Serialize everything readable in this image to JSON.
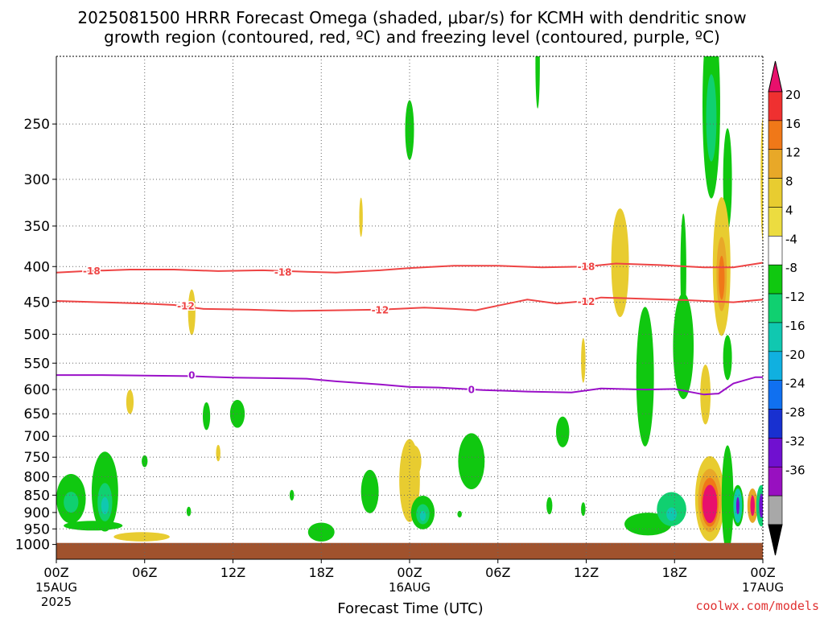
{
  "header": {
    "title_line1": "2025081500 HRRR Forecast Omega (shaded, μbar/s) for KCMH with dendritic snow",
    "title_line2": "growth region (contoured, red, ºC) and freezing level (contoured, purple, ºC)"
  },
  "footer": {
    "xlabel": "Forecast Time (UTC)",
    "credit": "coolwx.com/models"
  },
  "chart_data": {
    "type": "heatmap",
    "x": {
      "range_hours": [
        0,
        48
      ],
      "ticks": [
        {
          "hour": 0,
          "label": "00Z",
          "sub": [
            "15AUG",
            "2025"
          ]
        },
        {
          "hour": 6,
          "label": "06Z",
          "sub": []
        },
        {
          "hour": 12,
          "label": "12Z",
          "sub": []
        },
        {
          "hour": 18,
          "label": "18Z",
          "sub": []
        },
        {
          "hour": 24,
          "label": "00Z",
          "sub": [
            "16AUG"
          ]
        },
        {
          "hour": 30,
          "label": "06Z",
          "sub": []
        },
        {
          "hour": 36,
          "label": "12Z",
          "sub": []
        },
        {
          "hour": 42,
          "label": "18Z",
          "sub": []
        },
        {
          "hour": 48,
          "label": "00Z",
          "sub": [
            "17AUG"
          ]
        }
      ]
    },
    "y": {
      "unit": "hPa",
      "range": [
        200,
        1050
      ],
      "ticks": [
        250,
        300,
        350,
        400,
        450,
        500,
        550,
        600,
        650,
        700,
        750,
        800,
        850,
        900,
        950,
        1000
      ],
      "surface_pressure": 995
    },
    "colorbar": {
      "labels": [
        "20",
        "16",
        "12",
        "8",
        "4",
        "-4",
        "-8",
        "-12",
        "-16",
        "-20",
        "-24",
        "-28",
        "-32",
        "-36"
      ],
      "colors": [
        "#e8106c",
        "#ef3030",
        "#f07818",
        "#e8a828",
        "#e8cc30",
        "#ecdc40",
        "#ffffff",
        "#10c810",
        "#10d070",
        "#10c8b0",
        "#10b0e0",
        "#1070f0",
        "#1830d0",
        "#7010d0",
        "#9810c0",
        "#a8a8a8",
        "#000000"
      ]
    },
    "contours": [
      {
        "name": "-18",
        "color": "#ee4444",
        "points": [
          [
            0,
            408
          ],
          [
            2,
            406
          ],
          [
            5,
            404
          ],
          [
            8,
            404
          ],
          [
            11,
            406
          ],
          [
            14,
            405
          ],
          [
            17,
            407
          ],
          [
            19,
            408
          ],
          [
            22,
            405
          ],
          [
            24,
            402
          ],
          [
            27,
            399
          ],
          [
            30,
            399
          ],
          [
            33,
            401
          ],
          [
            36,
            400
          ],
          [
            38,
            396
          ],
          [
            41,
            398
          ],
          [
            44,
            401
          ],
          [
            46,
            401
          ],
          [
            48,
            395
          ]
        ],
        "labels": [
          [
            2.4,
            406
          ],
          [
            15.4,
            408
          ],
          [
            36,
            400
          ]
        ]
      },
      {
        "name": "-12",
        "color": "#ee4444",
        "points": [
          [
            0,
            448
          ],
          [
            3,
            450
          ],
          [
            6,
            452
          ],
          [
            8,
            454
          ],
          [
            10,
            460
          ],
          [
            13,
            461
          ],
          [
            16,
            463
          ],
          [
            19,
            462
          ],
          [
            22,
            461
          ],
          [
            25,
            458
          ],
          [
            27,
            460
          ],
          [
            28.5,
            462
          ],
          [
            30,
            455
          ],
          [
            32,
            446
          ],
          [
            34,
            452
          ],
          [
            36,
            448
          ],
          [
            37,
            443
          ],
          [
            40,
            445
          ],
          [
            43,
            447
          ],
          [
            46,
            450
          ],
          [
            48,
            446
          ]
        ],
        "labels": [
          [
            8.8,
            456
          ],
          [
            22,
            462
          ],
          [
            36,
            449
          ]
        ]
      },
      {
        "name": "0",
        "color": "#9a10c8",
        "points": [
          [
            0,
            572
          ],
          [
            3,
            572
          ],
          [
            6,
            573
          ],
          [
            9,
            574
          ],
          [
            12,
            577
          ],
          [
            15,
            578
          ],
          [
            17,
            579
          ],
          [
            19,
            584
          ],
          [
            22,
            590
          ],
          [
            24,
            595
          ],
          [
            26,
            596
          ],
          [
            29,
            601
          ],
          [
            32,
            604
          ],
          [
            35,
            606
          ],
          [
            37,
            598
          ],
          [
            40,
            600
          ],
          [
            42,
            599
          ],
          [
            44,
            610
          ],
          [
            45,
            608
          ],
          [
            46,
            588
          ],
          [
            47.5,
            576
          ],
          [
            48,
            576
          ]
        ],
        "labels": [
          [
            9.2,
            573
          ],
          [
            28.2,
            601
          ]
        ]
      }
    ],
    "omega_features": [
      {
        "hour": 1.0,
        "pressure": 860,
        "dh": 1.0,
        "dp": 70,
        "level": -8
      },
      {
        "hour": 1.0,
        "pressure": 870,
        "dh": 0.5,
        "dp": 30,
        "level": -12
      },
      {
        "hour": 3.3,
        "pressure": 840,
        "dh": 0.9,
        "dp": 110,
        "level": -8
      },
      {
        "hour": 3.3,
        "pressure": 870,
        "dh": 0.5,
        "dp": 55,
        "level": -12
      },
      {
        "hour": 3.3,
        "pressure": 880,
        "dh": 0.25,
        "dp": 25,
        "level": -16
      },
      {
        "hour": 2.5,
        "pressure": 940,
        "dh": 2.0,
        "dp": 15,
        "level": -8
      },
      {
        "hour": 5.8,
        "pressure": 975,
        "dh": 1.9,
        "dp": 15,
        "level": 4
      },
      {
        "hour": 5.0,
        "pressure": 625,
        "dh": 0.25,
        "dp": 25,
        "level": 4
      },
      {
        "hour": 6.0,
        "pressure": 760,
        "dh": 0.2,
        "dp": 15,
        "level": -8
      },
      {
        "hour": 9.2,
        "pressure": 465,
        "dh": 0.25,
        "dp": 35,
        "level": 4
      },
      {
        "hour": 9.0,
        "pressure": 897,
        "dh": 0.15,
        "dp": 14,
        "level": -8
      },
      {
        "hour": 10.2,
        "pressure": 655,
        "dh": 0.25,
        "dp": 30,
        "level": -8
      },
      {
        "hour": 11.0,
        "pressure": 740,
        "dh": 0.15,
        "dp": 20,
        "level": 4
      },
      {
        "hour": 12.3,
        "pressure": 650,
        "dh": 0.5,
        "dp": 30,
        "level": -8
      },
      {
        "hour": 16.0,
        "pressure": 850,
        "dh": 0.15,
        "dp": 15,
        "level": -8
      },
      {
        "hour": 18.0,
        "pressure": 960,
        "dh": 0.9,
        "dp": 30,
        "level": -8
      },
      {
        "hour": 20.7,
        "pressure": 340,
        "dh": 0.12,
        "dp": 22,
        "level": 4
      },
      {
        "hour": 21.3,
        "pressure": 840,
        "dh": 0.6,
        "dp": 60,
        "level": -8
      },
      {
        "hour": 24.0,
        "pressure": 255,
        "dh": 0.3,
        "dp": 25,
        "level": -8
      },
      {
        "hour": 24.0,
        "pressure": 810,
        "dh": 0.7,
        "dp": 110,
        "level": 4
      },
      {
        "hour": 24.3,
        "pressure": 760,
        "dh": 0.5,
        "dp": 40,
        "level": 4
      },
      {
        "hour": 24.9,
        "pressure": 900,
        "dh": 0.8,
        "dp": 50,
        "level": -8
      },
      {
        "hour": 24.9,
        "pressure": 905,
        "dh": 0.45,
        "dp": 30,
        "level": -12
      },
      {
        "hour": 24.9,
        "pressure": 910,
        "dh": 0.2,
        "dp": 15,
        "level": -16
      },
      {
        "hour": 27.4,
        "pressure": 905,
        "dh": 0.15,
        "dp": 10,
        "level": -8
      },
      {
        "hour": 28.2,
        "pressure": 760,
        "dh": 0.9,
        "dp": 70,
        "level": -8
      },
      {
        "hour": 32.7,
        "pressure": 205,
        "dh": 0.15,
        "dp": 30,
        "level": -8
      },
      {
        "hour": 34.4,
        "pressure": 690,
        "dh": 0.45,
        "dp": 35,
        "level": -8
      },
      {
        "hour": 33.5,
        "pressure": 880,
        "dh": 0.2,
        "dp": 25,
        "level": -8
      },
      {
        "hour": 35.8,
        "pressure": 545,
        "dh": 0.15,
        "dp": 40,
        "level": 4
      },
      {
        "hour": 35.8,
        "pressure": 890,
        "dh": 0.15,
        "dp": 20,
        "level": -8
      },
      {
        "hour": 38.3,
        "pressure": 395,
        "dh": 0.6,
        "dp": 70,
        "level": 4
      },
      {
        "hour": 40.2,
        "pressure": 935,
        "dh": 1.6,
        "dp": 35,
        "level": -8
      },
      {
        "hour": 41.8,
        "pressure": 890,
        "dh": 1.0,
        "dp": 50,
        "level": -12
      },
      {
        "hour": 41.8,
        "pressure": 905,
        "dh": 0.35,
        "dp": 20,
        "level": -16
      },
      {
        "hour": 40.0,
        "pressure": 575,
        "dh": 0.6,
        "dp": 130,
        "level": -8
      },
      {
        "hour": 42.6,
        "pressure": 520,
        "dh": 0.7,
        "dp": 90,
        "level": -8
      },
      {
        "hour": 42.6,
        "pressure": 405,
        "dh": 0.2,
        "dp": 75,
        "level": -8
      },
      {
        "hour": 44.1,
        "pressure": 610,
        "dh": 0.35,
        "dp": 60,
        "level": 4
      },
      {
        "hour": 44.4,
        "pressure": 860,
        "dh": 1.0,
        "dp": 120,
        "level": 4
      },
      {
        "hour": 44.4,
        "pressure": 865,
        "dh": 0.8,
        "dp": 90,
        "level": 8
      },
      {
        "hour": 44.4,
        "pressure": 870,
        "dh": 0.6,
        "dp": 70,
        "level": 12
      },
      {
        "hour": 44.4,
        "pressure": 875,
        "dh": 0.5,
        "dp": 55,
        "level": 20
      },
      {
        "hour": 44.5,
        "pressure": 235,
        "dh": 0.6,
        "dp": 70,
        "level": -8
      },
      {
        "hour": 44.5,
        "pressure": 245,
        "dh": 0.35,
        "dp": 35,
        "level": -12
      },
      {
        "hour": 45.6,
        "pressure": 300,
        "dh": 0.3,
        "dp": 50,
        "level": -8
      },
      {
        "hour": 45.2,
        "pressure": 400,
        "dh": 0.6,
        "dp": 90,
        "level": 4
      },
      {
        "hour": 45.2,
        "pressure": 410,
        "dh": 0.35,
        "dp": 50,
        "level": 8
      },
      {
        "hour": 45.2,
        "pressure": 415,
        "dh": 0.2,
        "dp": 30,
        "level": 12
      },
      {
        "hour": 45.6,
        "pressure": 540,
        "dh": 0.3,
        "dp": 40,
        "level": -8
      },
      {
        "hour": 45.6,
        "pressure": 860,
        "dh": 0.4,
        "dp": 150,
        "level": -8
      },
      {
        "hour": 46.3,
        "pressure": 880,
        "dh": 0.4,
        "dp": 60,
        "level": -8
      },
      {
        "hour": 46.3,
        "pressure": 880,
        "dh": 0.3,
        "dp": 50,
        "level": -16
      },
      {
        "hour": 46.3,
        "pressure": 880,
        "dh": 0.1,
        "dp": 25,
        "level": -28
      },
      {
        "hour": 47.3,
        "pressure": 880,
        "dh": 0.35,
        "dp": 50,
        "level": 8
      },
      {
        "hour": 47.3,
        "pressure": 880,
        "dh": 0.15,
        "dp": 30,
        "level": 20
      },
      {
        "hour": 47.9,
        "pressure": 880,
        "dh": 0.35,
        "dp": 60,
        "level": -12
      },
      {
        "hour": 47.9,
        "pressure": 880,
        "dh": 0.15,
        "dp": 35,
        "level": -28
      },
      {
        "hour": 48.0,
        "pressure": 300,
        "dh": 0.15,
        "dp": 60,
        "level": 4
      }
    ],
    "grid": true
  }
}
